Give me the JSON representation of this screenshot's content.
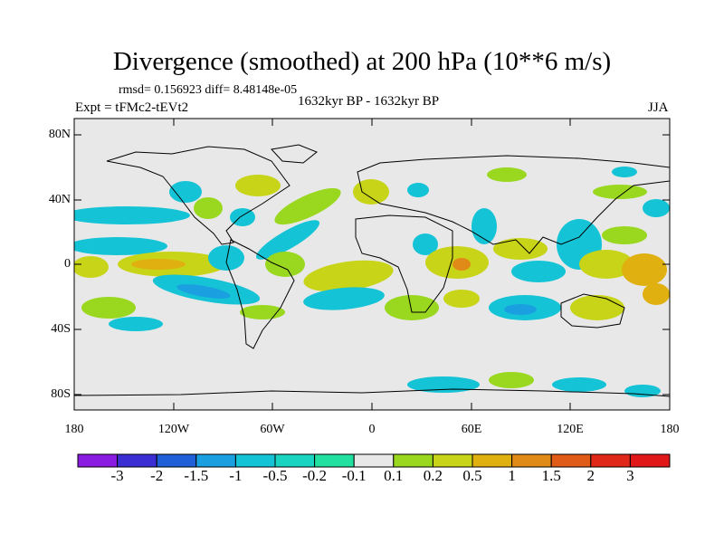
{
  "title": "Divergence (smoothed) at 200 hPa (10**6 m/s)",
  "stats": "rmsd= 0.156923 diff= 8.48148e-05",
  "experiment": "Expt = tFMc2-tEVt2",
  "period": "1632kyr BP - 1632kyr BP",
  "season": "JJA",
  "map": {
    "projection": "cylindrical equidistant",
    "lon_range": [
      -180,
      180
    ],
    "lat_range": [
      -90,
      90
    ],
    "y_ticks": [
      "80N",
      "40N",
      "0",
      "40S",
      "80S"
    ],
    "x_ticks": [
      "180",
      "120W",
      "60W",
      "0",
      "60E",
      "120E",
      "180"
    ],
    "background_color": "#e8e8e8"
  },
  "colorbar": {
    "levels": [
      "-3",
      "-2",
      "-1.5",
      "-1",
      "-0.5",
      "-0.2",
      "-0.1",
      "0.1",
      "0.2",
      "0.5",
      "1",
      "1.5",
      "2",
      "3"
    ],
    "colors": [
      "#8a1be0",
      "#3b2fd4",
      "#1f5fd8",
      "#1aa0e0",
      "#14c4d6",
      "#19d4c0",
      "#22e0a0",
      "#e8e8e8",
      "#9ad820",
      "#c8d418",
      "#e0b010",
      "#e08a18",
      "#e05a18",
      "#e02818",
      "#e01818"
    ]
  }
}
